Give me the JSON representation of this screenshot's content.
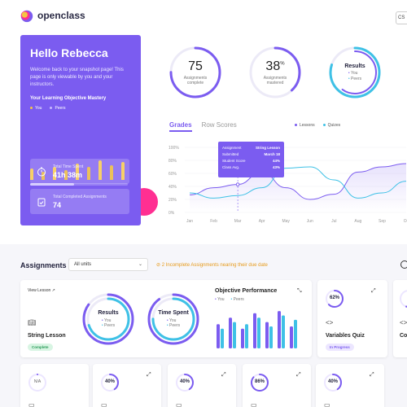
{
  "brand": {
    "name": "openclass"
  },
  "top_button_label": "CS",
  "hero": {
    "title": "Hello Rebecca",
    "message": "Welcome back to your snapshot page! This page is only viewable by you and your instructors.",
    "mastery_title": "Your Learning Objective Mastery",
    "legend_you": "You",
    "legend_peers": "Peers",
    "mastery_progress": 0.45,
    "time_label": "Total Time Spent",
    "time_value": "41h 38m",
    "assign_label": "Total Completed Assignments",
    "assign_value": "74",
    "colors": {
      "you": "#f5c543",
      "peers": "#f5c543",
      "card": "#7b5cf0",
      "accent": "#ff2f92"
    }
  },
  "rings": [
    {
      "value": "75",
      "caption": "Assignments complete",
      "progress": 0.75
    },
    {
      "value": "38",
      "suffix": "%",
      "caption": "Assignments mastered",
      "progress": 0.38
    },
    {
      "value": "Results",
      "caption_you": "You",
      "caption_peers": "Peers",
      "progress": 0.8
    }
  ],
  "tabs": {
    "active": "Grades",
    "other": "Row Scores"
  },
  "chart_legend": {
    "lessons": "Lessons",
    "quizzes": "Quizes"
  },
  "tooltip": {
    "rows": [
      {
        "k": "Assignment",
        "v": "String Lesson"
      },
      {
        "k": "Submitted",
        "v": "March 18"
      },
      {
        "k": "Student Score",
        "v": "44%"
      },
      {
        "k": "Class Avg.",
        "v": "43%"
      }
    ]
  },
  "chart_data": {
    "type": "line",
    "categories": [
      "Jan",
      "Feb",
      "Mar",
      "Apr",
      "May",
      "Jun",
      "Jul",
      "Aug",
      "Sep",
      "Oc"
    ],
    "ylim": [
      0,
      100
    ],
    "yticks": [
      "100%",
      "80%",
      "60%",
      "40%",
      "20%",
      "0%"
    ],
    "series": [
      {
        "name": "Lessons",
        "color": "#7b5cf0",
        "values": [
          27,
          38,
          43,
          62,
          38,
          20,
          28,
          62,
          70,
          75
        ]
      },
      {
        "name": "Quizes",
        "color": "#3ec1e6",
        "values": [
          30,
          22,
          26,
          38,
          68,
          70,
          50,
          22,
          30,
          48
        ]
      }
    ]
  },
  "assignments": {
    "title": "Assignments",
    "filter": "All units",
    "warning": "2 Incomplete Assignments nearing their due date"
  },
  "cards": {
    "string_lesson": {
      "view_lesson": "View Lesson",
      "title": "String Lesson",
      "badge": "Complete",
      "results_label": "Results",
      "time_label": "Time Spent",
      "you": "You",
      "peers": "Peers"
    },
    "objective": {
      "title": "Objective Performance",
      "you": "You",
      "peers": "Peers",
      "bars_you": [
        55,
        70,
        45,
        80,
        60,
        85,
        50
      ],
      "bars_peers": [
        45,
        60,
        55,
        70,
        50,
        75,
        65
      ]
    },
    "variables": {
      "pct": "62%",
      "progress": 0.62,
      "title": "Variables Quiz",
      "badge": "In Progress"
    },
    "row2": [
      {
        "pct": "N/A"
      },
      {
        "pct": "40%",
        "progress": 0.4
      },
      {
        "pct": "40%",
        "progress": 0.4
      },
      {
        "pct": "86%",
        "progress": 0.86
      },
      {
        "pct": "40%",
        "progress": 0.4
      }
    ]
  }
}
